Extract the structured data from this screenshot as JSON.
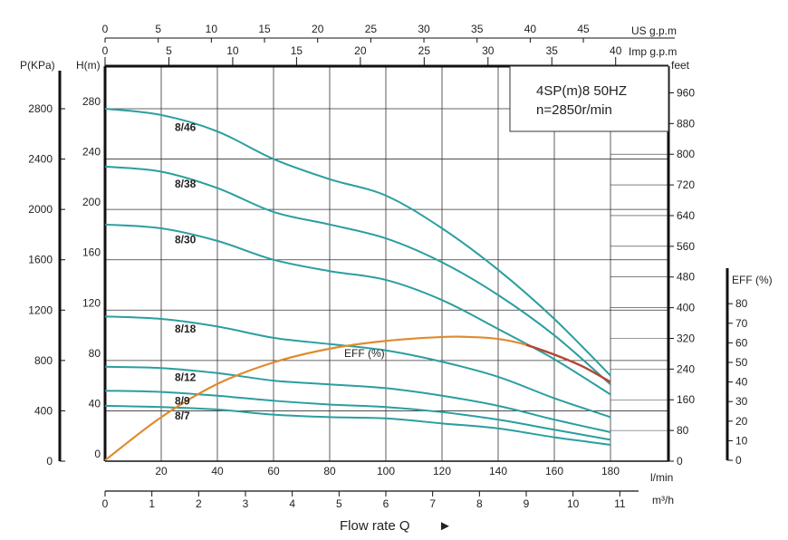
{
  "chart_data": {
    "type": "line",
    "info_box": {
      "line1": "4SP(m)8  50HZ",
      "line2": "n=2850r/min"
    },
    "axes": {
      "flow_lmin": {
        "unit": "l/min",
        "range": [
          0,
          180
        ],
        "ticks": [
          "20",
          "40",
          "60",
          "80",
          "100",
          "120",
          "140",
          "160",
          "180"
        ]
      },
      "flow_m3h": {
        "unit": "m³/h",
        "range": [
          0,
          10.8
        ],
        "ticks": [
          "0",
          "1",
          "2",
          "3",
          "4",
          "5",
          "6",
          "7",
          "8",
          "9",
          "10",
          "11"
        ]
      },
      "flow_usgpm": {
        "unit": "US g.p.m",
        "range": [
          0,
          47.55
        ],
        "ticks": [
          "0",
          "5",
          "10",
          "15",
          "20",
          "25",
          "30",
          "35",
          "40",
          "45"
        ]
      },
      "flow_impgpm": {
        "unit": "Imp g.p.m",
        "range": [
          0,
          39.6
        ],
        "ticks": [
          "0",
          "5",
          "10",
          "15",
          "20",
          "25",
          "30",
          "35",
          "40"
        ]
      },
      "head_m": {
        "unit": "H(m)",
        "range": [
          0,
          280
        ],
        "ticks": [
          "0",
          "40",
          "80",
          "120",
          "160",
          "200",
          "240",
          "280"
        ]
      },
      "pressure_kpa": {
        "unit": "P(KPa)",
        "range": [
          0,
          2800
        ],
        "ticks": [
          "0",
          "400",
          "800",
          "1200",
          "1600",
          "2000",
          "2400",
          "2800"
        ]
      },
      "head_feet": {
        "unit": "feet",
        "range": [
          0,
          918.6
        ],
        "ticks": [
          "0",
          "80",
          "160",
          "240",
          "320",
          "400",
          "480",
          "560",
          "640",
          "720",
          "800",
          "880",
          "960"
        ]
      },
      "efficiency": {
        "unit": "EFF (%)",
        "range": [
          0,
          100
        ],
        "ticks": [
          "0",
          "10",
          "20",
          "30",
          "40",
          "50",
          "60",
          "70",
          "80"
        ]
      }
    },
    "grid": true,
    "x_label": "Flow rate Q",
    "x_label_arrow": "►",
    "series": [
      {
        "name": "8/46",
        "x": [
          0,
          20,
          40,
          60,
          80,
          100,
          120,
          140,
          160,
          180
        ],
        "y": [
          280,
          275,
          262,
          240,
          224,
          211,
          185,
          152,
          113,
          68
        ]
      },
      {
        "name": "8/38",
        "x": [
          0,
          20,
          40,
          60,
          80,
          100,
          120,
          140,
          160,
          180
        ],
        "y": [
          234,
          230,
          217,
          198,
          188,
          177,
          158,
          132,
          100,
          61
        ]
      },
      {
        "name": "8/30",
        "x": [
          0,
          20,
          40,
          60,
          80,
          100,
          120,
          140,
          160,
          180
        ],
        "y": [
          188,
          185,
          175,
          160,
          151,
          144,
          128,
          105,
          81,
          53
        ]
      },
      {
        "name": "8/18",
        "x": [
          0,
          20,
          40,
          60,
          80,
          100,
          120,
          140,
          160,
          180
        ],
        "y": [
          115,
          113,
          107,
          98,
          93,
          88,
          79,
          67,
          50,
          35
        ]
      },
      {
        "name": "8/12",
        "x": [
          0,
          20,
          40,
          60,
          80,
          100,
          120,
          140,
          160,
          180
        ],
        "y": [
          75,
          74,
          70,
          64,
          61,
          58,
          52,
          44,
          33,
          23
        ]
      },
      {
        "name": "8/9",
        "x": [
          0,
          20,
          40,
          60,
          80,
          100,
          120,
          140,
          160,
          180
        ],
        "y": [
          56,
          55,
          52,
          48,
          45,
          43,
          39,
          33,
          25,
          17
        ]
      },
      {
        "name": "8/7",
        "x": [
          0,
          20,
          40,
          60,
          80,
          100,
          120,
          140,
          160,
          180
        ],
        "y": [
          44,
          43,
          41,
          37,
          35,
          34,
          30,
          26,
          19,
          13
        ]
      }
    ],
    "efficiency_curve": {
      "name": "EFF (%)",
      "x": [
        0,
        20,
        40,
        60,
        80,
        100,
        120,
        130,
        140,
        150,
        160,
        170,
        180
      ],
      "y": [
        0,
        22,
        39,
        50,
        57,
        61,
        63,
        63,
        62,
        59,
        54,
        48,
        40
      ]
    },
    "colors": {
      "curve": "#2a9ea0",
      "efficiency": "#e08a2e",
      "overlap": "#b3473a",
      "grid": "#333333",
      "frame": "#111111"
    }
  }
}
